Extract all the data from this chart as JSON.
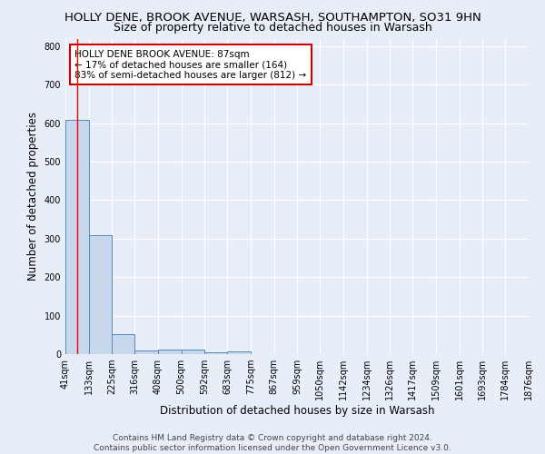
{
  "title1": "HOLLY DENE, BROOK AVENUE, WARSASH, SOUTHAMPTON, SO31 9HN",
  "title2": "Size of property relative to detached houses in Warsash",
  "xlabel": "Distribution of detached houses by size in Warsash",
  "ylabel": "Number of detached properties",
  "bin_edges": [
    41,
    133,
    225,
    316,
    408,
    500,
    592,
    683,
    775,
    867,
    959,
    1050,
    1142,
    1234,
    1326,
    1417,
    1509,
    1601,
    1693,
    1784,
    1876
  ],
  "bar_heights": [
    608,
    310,
    52,
    10,
    12,
    12,
    5,
    8,
    0,
    0,
    0,
    0,
    0,
    0,
    0,
    0,
    0,
    0,
    0,
    0
  ],
  "bar_color": "#c8d8ec",
  "bar_edge_color": "#5588bb",
  "red_line_x": 87,
  "annotation_text": "HOLLY DENE BROOK AVENUE: 87sqm\n← 17% of detached houses are smaller (164)\n83% of semi-detached houses are larger (812) →",
  "annotation_box_color": "white",
  "annotation_box_edge_color": "#cc0000",
  "ylim": [
    0,
    820
  ],
  "yticks": [
    0,
    100,
    200,
    300,
    400,
    500,
    600,
    700,
    800
  ],
  "footer": "Contains HM Land Registry data © Crown copyright and database right 2024.\nContains public sector information licensed under the Open Government Licence v3.0.",
  "bg_color": "#e8eef8",
  "grid_color": "#ffffff",
  "title1_fontsize": 9.5,
  "title2_fontsize": 9,
  "axis_label_fontsize": 8.5,
  "tick_fontsize": 7,
  "annotation_fontsize": 7.5,
  "footer_fontsize": 6.5
}
